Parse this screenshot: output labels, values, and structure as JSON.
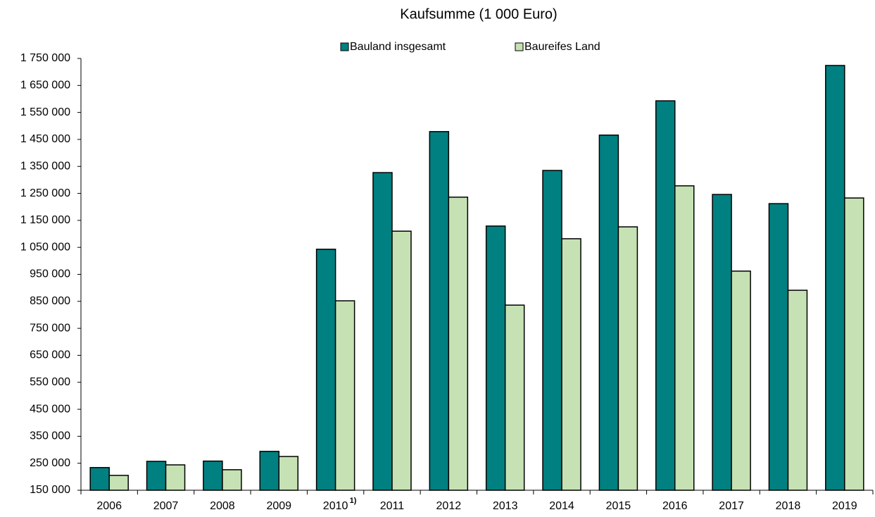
{
  "chart_data": {
    "type": "bar",
    "title": "Kaufsumme (1 000 Euro)",
    "categories": [
      "2006",
      "2007",
      "2008",
      "2009",
      "2010",
      "2011",
      "2012",
      "2013",
      "2014",
      "2015",
      "2016",
      "2017",
      "2018",
      "2019"
    ],
    "footnote_category": "2010",
    "footnote_mark": "1)",
    "series": [
      {
        "name": "Bauland insgesamt",
        "color": "#008080",
        "values": [
          234000,
          257000,
          258000,
          294000,
          1043000,
          1327000,
          1479000,
          1129000,
          1335000,
          1466000,
          1593000,
          1246000,
          1212000,
          1724000
        ]
      },
      {
        "name": "Baureifes Land",
        "color": "#c6e2b4",
        "values": [
          205000,
          244000,
          226000,
          275000,
          852000,
          1110000,
          1236000,
          836000,
          1082000,
          1126000,
          1278000,
          962000,
          891000,
          1233000
        ]
      }
    ],
    "ylim": [
      150000,
      1750000
    ],
    "yticks": [
      {
        "value": 150000,
        "label": "150 000"
      },
      {
        "value": 250000,
        "label": "250 000"
      },
      {
        "value": 350000,
        "label": "350 000"
      },
      {
        "value": 450000,
        "label": "450 000"
      },
      {
        "value": 550000,
        "label": "550 000"
      },
      {
        "value": 650000,
        "label": "650 000"
      },
      {
        "value": 750000,
        "label": "750 000"
      },
      {
        "value": 850000,
        "label": "850 000"
      },
      {
        "value": 950000,
        "label": "950 000"
      },
      {
        "value": 1050000,
        "label": "1 050 000"
      },
      {
        "value": 1150000,
        "label": "1 150 000"
      },
      {
        "value": 1250000,
        "label": "1 250 000"
      },
      {
        "value": 1350000,
        "label": "1 350 000"
      },
      {
        "value": 1450000,
        "label": "1 450 000"
      },
      {
        "value": 1550000,
        "label": "1 550 000"
      },
      {
        "value": 1650000,
        "label": "1 650 000"
      },
      {
        "value": 1750000,
        "label": "1 750 000"
      }
    ],
    "grid": false,
    "legend": "top"
  }
}
